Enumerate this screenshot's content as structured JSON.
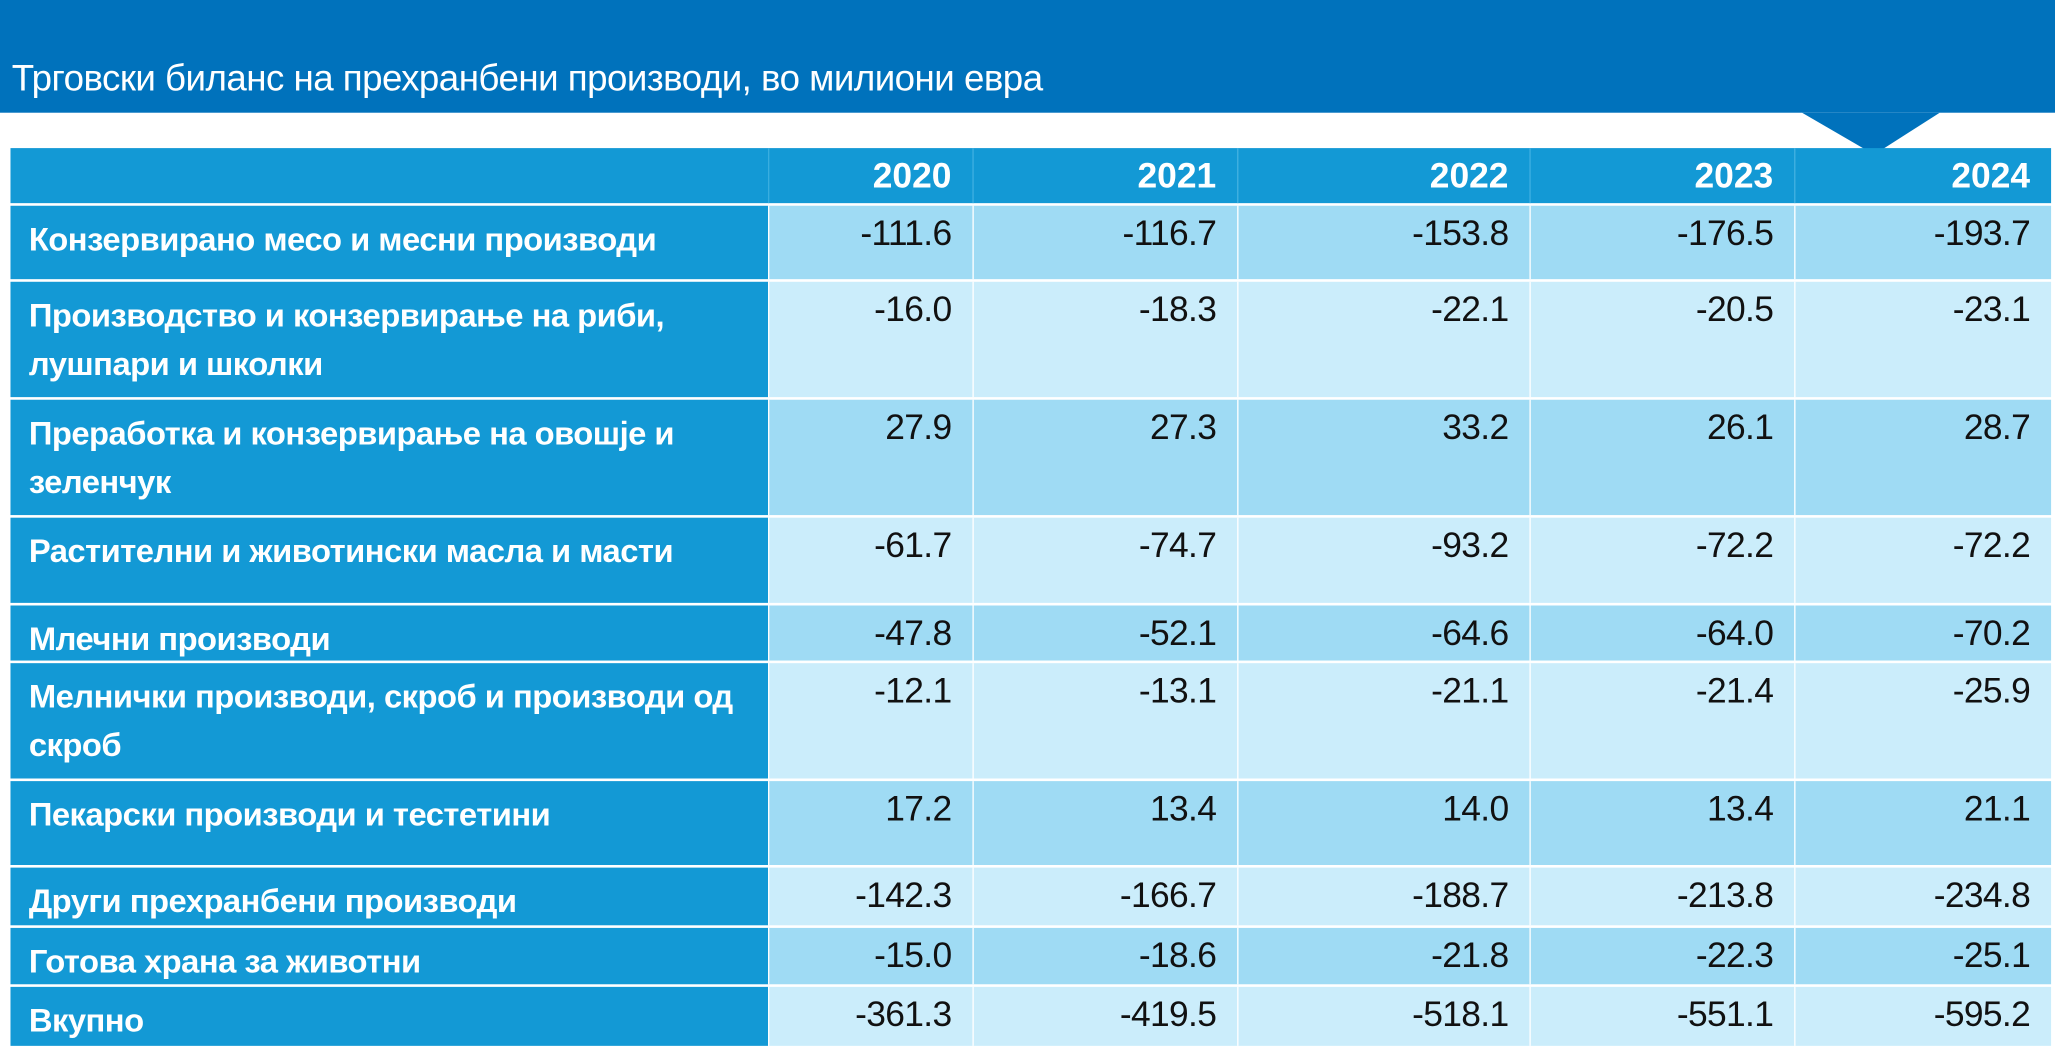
{
  "header": {
    "title": "Трговски биланс на прехранбени производи, во милиони евра"
  },
  "table": {
    "columns": [
      "2020",
      "2021",
      "2022",
      "2023",
      "2024"
    ],
    "rows": [
      {
        "label": "Конзервирано месо и месни производи",
        "values": [
          "-111.6",
          "-116.7",
          "-153.8",
          "-176.5",
          "-193.7"
        ]
      },
      {
        "label": "Производство и конзервирање на риби, лушпари и школки",
        "values": [
          "-16.0",
          "-18.3",
          "-22.1",
          "-20.5",
          "-23.1"
        ]
      },
      {
        "label": "Преработка и конзервирање на овошје и зеленчук",
        "values": [
          "27.9",
          "27.3",
          "33.2",
          "26.1",
          "28.7"
        ]
      },
      {
        "label": "Растителни и животински масла и масти",
        "values": [
          "-61.7",
          "-74.7",
          "-93.2",
          "-72.2",
          "-72.2"
        ]
      },
      {
        "label": "Млечни производи",
        "values": [
          "-47.8",
          "-52.1",
          "-64.6",
          "-64.0",
          "-70.2"
        ]
      },
      {
        "label": "Мелнички производи, скроб и производи од скроб",
        "values": [
          "-12.1",
          "-13.1",
          "-21.1",
          "-21.4",
          "-25.9"
        ]
      },
      {
        "label": "Пекарски производи и тестетини",
        "values": [
          "17.2",
          "13.4",
          "14.0",
          "13.4",
          "21.1"
        ]
      },
      {
        "label": "Други прехранбени производи",
        "values": [
          "-142.3",
          "-166.7",
          "-188.7",
          "-213.8",
          "-234.8"
        ]
      },
      {
        "label": "Готова храна за животни",
        "values": [
          "-15.0",
          "-18.6",
          "-21.8",
          "-22.3",
          "-25.1"
        ]
      },
      {
        "label": "Вкупно",
        "values": [
          "-361.3",
          "-419.5",
          "-518.1",
          "-551.1",
          "-595.2"
        ]
      }
    ]
  }
}
